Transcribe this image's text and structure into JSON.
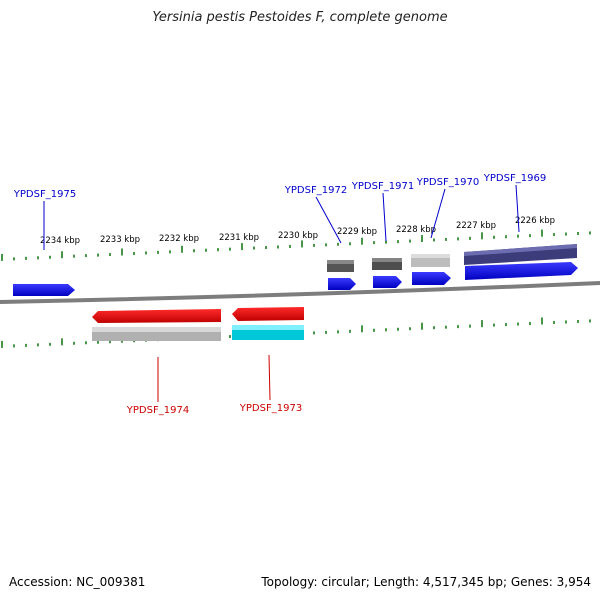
{
  "title": "Yersinia pestis Pestoides F, complete genome",
  "footer": {
    "accession": "Accession: NC_009381",
    "topology": "Topology: circular; Length: 4,517,345 bp; Genes: 3,954"
  },
  "scale_labels": [
    "2234 kbp",
    "2233 kbp",
    "2232 kbp",
    "2231 kbp",
    "2230 kbp",
    "2229 kbp",
    "2228 kbp",
    "2227 kbp",
    "2226 kbp"
  ],
  "genes": {
    "forward": [
      {
        "id": "YPDSF_1975",
        "color": "#0000dd"
      },
      {
        "id": "YPDSF_1972",
        "color": "#0000dd"
      },
      {
        "id": "YPDSF_1971",
        "color": "#0000dd"
      },
      {
        "id": "YPDSF_1970",
        "color": "#0000dd"
      },
      {
        "id": "YPDSF_1969",
        "color": "#0000dd"
      }
    ],
    "reverse": [
      {
        "id": "YPDSF_1974",
        "color": "#dd0000"
      },
      {
        "id": "YPDSF_1973",
        "color": "#dd0000"
      }
    ]
  },
  "colors": {
    "forward_label": "#0000cc",
    "reverse_label": "#cc0000",
    "tick": "#1a7a1a",
    "backbone": "#808080"
  }
}
